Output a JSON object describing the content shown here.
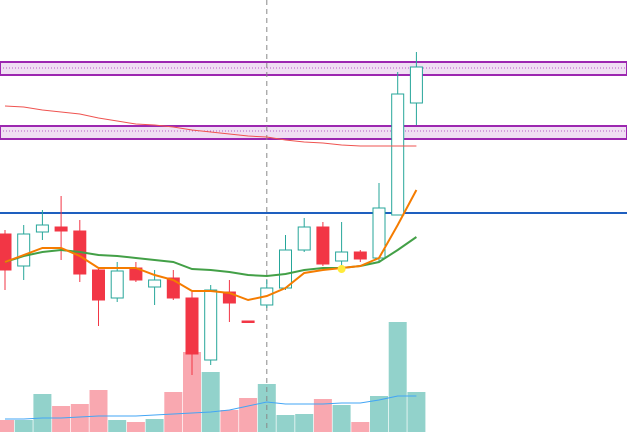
{
  "chart_data": {
    "type": "candlestick",
    "categories": [
      null,
      null,
      null,
      null,
      null,
      null,
      null,
      null,
      null,
      null,
      null,
      null,
      null,
      null,
      null,
      null,
      null,
      null,
      null,
      null,
      null,
      null,
      null
    ],
    "open": [
      198,
      166,
      200,
      205,
      201,
      162,
      134,
      164,
      145,
      154,
      134,
      72,
      140,
      111,
      127,
      144,
      182,
      205,
      171,
      180,
      174,
      217,
      329
    ],
    "high": [
      202,
      207,
      222,
      236,
      212,
      164,
      170,
      170,
      162,
      162,
      142,
      147,
      152,
      111,
      152,
      197,
      214,
      210,
      210,
      182,
      249,
      360,
      380
    ],
    "low": [
      142,
      152,
      192,
      172,
      150,
      106,
      130,
      150,
      127,
      132,
      57,
      67,
      110,
      110,
      124,
      142,
      180,
      166,
      160,
      170,
      170,
      217,
      307
    ],
    "close": [
      162,
      198,
      207,
      201,
      158,
      132,
      161,
      152,
      152,
      134,
      78,
      142,
      129,
      110,
      144,
      182,
      205,
      168,
      180,
      173,
      224,
      338,
      365
    ],
    "volume": [
      12,
      12,
      38,
      26,
      28,
      42,
      12,
      10,
      13,
      40,
      80,
      60,
      22,
      34,
      48,
      17,
      18,
      33,
      27,
      10,
      36,
      110,
      40
    ],
    "up_color": "#26a69a",
    "down_color": "#f23645",
    "volume_up_color": "#92d2cb",
    "volume_down_color": "#f9a8b0",
    "series": [
      {
        "color": "#ef5350",
        "values": [
          326,
          325,
          322,
          320,
          318,
          314,
          311,
          308,
          307,
          305,
          302,
          300,
          298,
          296,
          295,
          292,
          290,
          289,
          287,
          286,
          286,
          286,
          286
        ]
      },
      {
        "color": "#43a047",
        "values": [
          170,
          176,
          180,
          182,
          180,
          177,
          176,
          174,
          172,
          170,
          163,
          162,
          160,
          157,
          156,
          158,
          162,
          164,
          164,
          166,
          170,
          182,
          195
        ]
      },
      {
        "color": "#f57c00",
        "values": [
          170,
          177,
          184,
          184,
          176,
          164,
          164,
          164,
          157,
          152,
          141,
          141,
          139,
          132,
          136,
          144,
          159,
          162,
          164,
          166,
          174,
          207,
          242
        ]
      },
      {
        "color": "#42a5f5",
        "axis": "volume",
        "values": [
          13,
          13,
          14,
          14,
          15,
          16,
          16,
          16,
          17,
          18,
          19,
          20,
          22,
          26,
          30,
          28,
          28,
          28,
          29,
          29,
          32,
          36,
          36
        ]
      }
    ],
    "zones": [
      {
        "low": 357,
        "high": 370,
        "mid": 364,
        "color": "#9c27b0"
      },
      {
        "low": 293,
        "high": 306,
        "mid": 301,
        "color": "#9c27b0"
      }
    ],
    "hlines": [
      {
        "value": 219,
        "color": "#1e5fbf"
      }
    ],
    "marker": {
      "index": 18,
      "value": 163,
      "color": "#ffeb3b"
    },
    "crosshair_index": 14,
    "ylim": [
      0,
      432
    ],
    "volume_lim": [
      0,
      432
    ]
  }
}
